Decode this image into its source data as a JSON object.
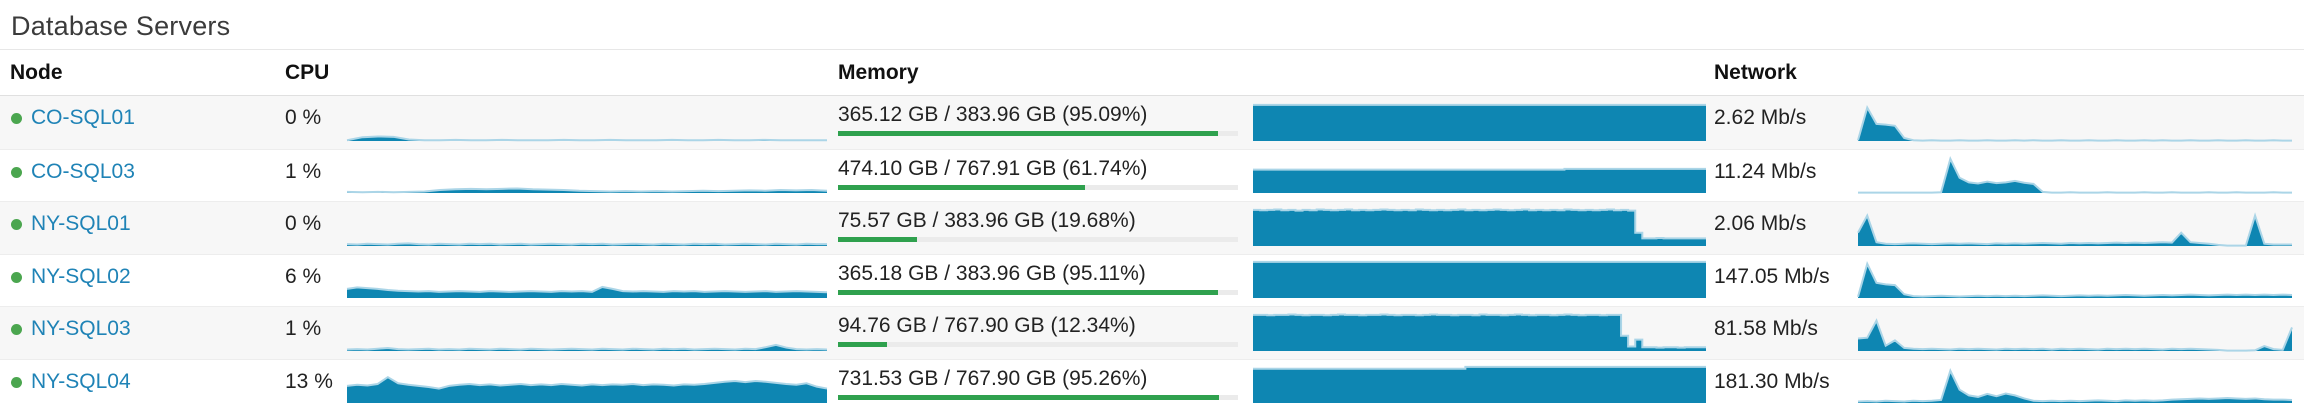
{
  "title": "Database Servers",
  "columns": {
    "node": "Node",
    "cpu": "CPU",
    "memory": "Memory",
    "network": "Network"
  },
  "colors": {
    "spark_fill": "#0e86b2",
    "spark_stroke": "#abd5e7",
    "bar_green": "#2fa14e",
    "bar_track": "#ebebeb",
    "dot_green": "#4ba64f",
    "link_blue": "#1f83b6"
  },
  "rows": [
    {
      "status": "up",
      "name": "CO-SQL01",
      "cpu": {
        "label": "0 %",
        "spark": [
          0.02,
          0.1,
          0.12,
          0.11,
          0.04,
          0.02,
          0.02,
          0.03,
          0.02,
          0.02,
          0.03,
          0.02,
          0.02,
          0.02,
          0.03,
          0.02,
          0.02,
          0.03,
          0.02,
          0.02,
          0.02,
          0.03,
          0.02,
          0.02,
          0.03,
          0.02,
          0.02,
          0.03,
          0.02,
          0.02,
          0.02,
          0.02
        ]
      },
      "memory": {
        "label": "365.12 GB / 383.96 GB (95.09%)",
        "percent": 95.09,
        "spark": [
          0.95,
          0.95,
          0.95,
          0.95,
          0.95,
          0.95,
          0.95,
          0.95
        ]
      },
      "network": {
        "label": "2.62 Mb/s",
        "spark": [
          0.02,
          0.88,
          0.45,
          0.43,
          0.4,
          0.08,
          0.02,
          0.01,
          0.02,
          0.01,
          0.01,
          0.02,
          0.01,
          0.01,
          0.02,
          0.01,
          0.01,
          0.02,
          0.01,
          0.02,
          0.01,
          0.01,
          0.02,
          0.01,
          0.01,
          0.02,
          0.01,
          0.01,
          0.02,
          0.01,
          0.01,
          0.02,
          0.01,
          0.02,
          0.01,
          0.01,
          0.02,
          0.01,
          0.01,
          0.02,
          0.01,
          0.01,
          0.02,
          0.01,
          0.01,
          0.02,
          0.01,
          0.01
        ]
      }
    },
    {
      "status": "up",
      "name": "CO-SQL03",
      "cpu": {
        "label": "1 %",
        "spark": [
          0.03,
          0.02,
          0.03,
          0.02,
          0.03,
          0.04,
          0.08,
          0.1,
          0.11,
          0.1,
          0.11,
          0.12,
          0.1,
          0.09,
          0.08,
          0.06,
          0.05,
          0.04,
          0.05,
          0.04,
          0.05,
          0.04,
          0.05,
          0.06,
          0.05,
          0.06,
          0.07,
          0.06,
          0.08,
          0.07,
          0.08,
          0.06
        ]
      },
      "memory": {
        "label": "474.10 GB / 767.91 GB (61.74%)",
        "percent": 61.74,
        "spark": [
          0.615,
          0.615,
          0.615,
          0.615,
          0.615,
          0.615,
          0.615,
          0.615,
          0.615,
          0.615,
          0.615,
          0.615,
          0.615,
          0.615,
          0.615,
          0.615,
          0.615,
          0.615,
          0.615,
          0.615,
          0.615,
          0.615,
          0.635,
          0.635,
          0.635,
          0.635,
          0.635,
          0.635,
          0.635,
          0.635,
          0.635,
          0.635
        ]
      },
      "network": {
        "label": "11.24 Mb/s",
        "spark": [
          0.01,
          0.01,
          0.01,
          0.01,
          0.01,
          0.01,
          0.01,
          0.01,
          0.01,
          0.02,
          0.9,
          0.4,
          0.28,
          0.25,
          0.3,
          0.26,
          0.28,
          0.32,
          0.27,
          0.24,
          0.03,
          0.01,
          0.01,
          0.02,
          0.01,
          0.01,
          0.01,
          0.02,
          0.01,
          0.01,
          0.01,
          0.02,
          0.01,
          0.01,
          0.02,
          0.01,
          0.01,
          0.01,
          0.02,
          0.01,
          0.01,
          0.02,
          0.01,
          0.01,
          0.01,
          0.02,
          0.01,
          0.01
        ]
      }
    },
    {
      "status": "up",
      "name": "NY-SQL01",
      "cpu": {
        "label": "0 %",
        "spark": [
          0.05,
          0.04,
          0.06,
          0.05,
          0.04,
          0.06,
          0.07,
          0.05,
          0.04,
          0.06,
          0.05,
          0.04,
          0.06,
          0.05,
          0.06,
          0.04,
          0.05,
          0.06,
          0.04,
          0.05,
          0.06,
          0.05,
          0.04,
          0.06,
          0.05,
          0.06,
          0.04,
          0.05,
          0.06,
          0.05,
          0.04,
          0.06,
          0.05,
          0.04,
          0.06,
          0.05,
          0.06,
          0.04,
          0.05,
          0.06,
          0.05,
          0.04,
          0.06,
          0.05,
          0.04,
          0.06,
          0.05,
          0.05
        ]
      },
      "memory": {
        "label": "75.57 GB / 383.96 GB (19.68%)",
        "percent": 19.68,
        "spark": [
          0.95,
          0.94,
          0.95,
          0.96,
          0.94,
          0.95,
          0.93,
          0.95,
          0.94,
          0.96,
          0.95,
          0.94,
          0.95,
          0.96,
          0.94,
          0.95,
          0.94,
          0.95,
          0.96,
          0.95,
          0.94,
          0.95,
          0.94,
          0.96,
          0.95,
          0.94,
          0.95,
          0.94,
          0.95,
          0.96,
          0.94,
          0.95,
          0.94,
          0.95,
          0.96,
          0.95,
          0.94,
          0.95,
          0.96,
          0.94,
          0.95,
          0.94,
          0.95,
          0.94,
          0.96,
          0.95,
          0.94,
          0.95,
          0.94,
          0.95,
          0.96,
          0.94,
          0.95,
          0.93,
          0.35,
          0.2,
          0.2,
          0.21,
          0.2,
          0.2,
          0.2,
          0.2,
          0.2,
          0.2
        ]
      },
      "network": {
        "label": "2.06 Mb/s",
        "spark": [
          0.35,
          0.8,
          0.1,
          0.06,
          0.05,
          0.06,
          0.07,
          0.06,
          0.05,
          0.06,
          0.07,
          0.06,
          0.07,
          0.06,
          0.05,
          0.07,
          0.06,
          0.07,
          0.06,
          0.07,
          0.08,
          0.07,
          0.06,
          0.08,
          0.07,
          0.08,
          0.07,
          0.08,
          0.09,
          0.08,
          0.09,
          0.08,
          0.09,
          0.1,
          0.09,
          0.35,
          0.1,
          0.08,
          0.06,
          0.03,
          0.01,
          0.01,
          0.01,
          0.8,
          0.06,
          0.04,
          0.04,
          0.04
        ]
      }
    },
    {
      "status": "up",
      "name": "NY-SQL02",
      "cpu": {
        "label": "6 %",
        "spark": [
          0.24,
          0.28,
          0.26,
          0.24,
          0.21,
          0.19,
          0.18,
          0.17,
          0.18,
          0.16,
          0.17,
          0.18,
          0.17,
          0.16,
          0.18,
          0.17,
          0.16,
          0.17,
          0.18,
          0.17,
          0.16,
          0.18,
          0.17,
          0.18,
          0.16,
          0.29,
          0.24,
          0.18,
          0.17,
          0.18,
          0.17,
          0.16,
          0.18,
          0.17,
          0.18,
          0.16,
          0.17,
          0.18,
          0.17,
          0.16,
          0.17,
          0.18,
          0.16,
          0.17,
          0.18,
          0.17,
          0.16,
          0.15
        ]
      },
      "memory": {
        "label": "365.18 GB / 383.96 GB (95.11%)",
        "percent": 95.11,
        "spark": [
          0.95,
          0.95,
          0.95,
          0.95,
          0.95,
          0.95,
          0.95,
          0.95
        ]
      },
      "network": {
        "label": "147.05 Mb/s",
        "spark": [
          0.03,
          0.9,
          0.4,
          0.36,
          0.34,
          0.1,
          0.05,
          0.04,
          0.05,
          0.06,
          0.05,
          0.04,
          0.05,
          0.06,
          0.05,
          0.06,
          0.05,
          0.06,
          0.05,
          0.06,
          0.07,
          0.06,
          0.05,
          0.06,
          0.07,
          0.06,
          0.07,
          0.06,
          0.07,
          0.08,
          0.07,
          0.06,
          0.07,
          0.08,
          0.07,
          0.08,
          0.09,
          0.08,
          0.07,
          0.08,
          0.09,
          0.08,
          0.09,
          0.08,
          0.09,
          0.08,
          0.09,
          0.08
        ]
      }
    },
    {
      "status": "up",
      "name": "NY-SQL03",
      "cpu": {
        "label": "1 %",
        "spark": [
          0.04,
          0.05,
          0.04,
          0.06,
          0.08,
          0.05,
          0.04,
          0.05,
          0.06,
          0.04,
          0.05,
          0.04,
          0.06,
          0.05,
          0.04,
          0.06,
          0.05,
          0.04,
          0.06,
          0.05,
          0.04,
          0.05,
          0.06,
          0.05,
          0.04,
          0.06,
          0.05,
          0.04,
          0.06,
          0.05,
          0.04,
          0.06,
          0.05,
          0.06,
          0.04,
          0.05,
          0.06,
          0.05,
          0.04,
          0.06,
          0.05,
          0.1,
          0.16,
          0.09,
          0.05,
          0.04,
          0.05,
          0.04
        ]
      },
      "memory": {
        "label": "94.76 GB / 767.90 GB (12.34%)",
        "percent": 12.34,
        "spark": [
          0.95,
          0.95,
          0.94,
          0.95,
          0.95,
          0.96,
          0.95,
          0.94,
          0.95,
          0.95,
          0.94,
          0.95,
          0.96,
          0.95,
          0.95,
          0.94,
          0.95,
          0.95,
          0.96,
          0.95,
          0.94,
          0.95,
          0.95,
          0.94,
          0.95,
          0.96,
          0.95,
          0.95,
          0.94,
          0.95,
          0.95,
          0.94,
          0.96,
          0.95,
          0.95,
          0.94,
          0.95,
          0.96,
          0.95,
          0.94,
          0.95,
          0.95,
          0.94,
          0.95,
          0.96,
          0.95,
          0.94,
          0.95,
          0.95,
          0.94,
          0.95,
          0.95,
          0.4,
          0.12,
          0.3,
          0.1,
          0.1,
          0.09,
          0.1,
          0.1,
          0.09,
          0.1,
          0.1,
          0.1
        ]
      },
      "network": {
        "label": "81.58 Mb/s",
        "spark": [
          0.33,
          0.35,
          0.8,
          0.14,
          0.28,
          0.08,
          0.06,
          0.05,
          0.06,
          0.05,
          0.04,
          0.06,
          0.05,
          0.06,
          0.05,
          0.04,
          0.06,
          0.05,
          0.06,
          0.05,
          0.06,
          0.04,
          0.06,
          0.05,
          0.06,
          0.05,
          0.04,
          0.06,
          0.05,
          0.06,
          0.05,
          0.06,
          0.05,
          0.04,
          0.06,
          0.05,
          0.06,
          0.05,
          0.04,
          0.03,
          0.01,
          0.01,
          0.01,
          0.02,
          0.13,
          0.05,
          0.03,
          0.62
        ]
      }
    },
    {
      "status": "up",
      "name": "NY-SQL04",
      "cpu": {
        "label": "13 %",
        "spark": [
          0.45,
          0.48,
          0.46,
          0.5,
          0.68,
          0.52,
          0.48,
          0.45,
          0.42,
          0.38,
          0.45,
          0.48,
          0.5,
          0.47,
          0.49,
          0.46,
          0.48,
          0.5,
          0.47,
          0.49,
          0.47,
          0.5,
          0.48,
          0.46,
          0.49,
          0.47,
          0.49,
          0.48,
          0.5,
          0.47,
          0.49,
          0.48,
          0.46,
          0.49,
          0.48,
          0.5,
          0.53,
          0.56,
          0.58,
          0.55,
          0.58,
          0.56,
          0.53,
          0.5,
          0.48,
          0.52,
          0.43,
          0.38
        ]
      },
      "memory": {
        "label": "731.53 GB / 767.90 GB (95.26%)",
        "percent": 95.26,
        "spark": [
          0.9,
          0.9,
          0.9,
          0.9,
          0.9,
          0.9,
          0.9,
          0.9,
          0.9,
          0.9,
          0.9,
          0.9,
          0.9,
          0.9,
          0.9,
          0.95,
          0.95,
          0.95,
          0.95,
          0.95,
          0.95,
          0.95,
          0.95,
          0.95,
          0.95,
          0.95,
          0.95,
          0.95,
          0.95,
          0.95,
          0.95,
          0.95
        ]
      },
      "network": {
        "label": "181.30 Mb/s",
        "spark": [
          0.04,
          0.05,
          0.04,
          0.06,
          0.05,
          0.04,
          0.06,
          0.05,
          0.06,
          0.08,
          0.85,
          0.35,
          0.2,
          0.16,
          0.24,
          0.18,
          0.25,
          0.2,
          0.12,
          0.06,
          0.05,
          0.06,
          0.05,
          0.06,
          0.05,
          0.06,
          0.07,
          0.06,
          0.05,
          0.07,
          0.06,
          0.07,
          0.06,
          0.07,
          0.09,
          0.1,
          0.11,
          0.12,
          0.11,
          0.12,
          0.13,
          0.12,
          0.11,
          0.12,
          0.1,
          0.09,
          0.09,
          0.08
        ]
      }
    }
  ]
}
